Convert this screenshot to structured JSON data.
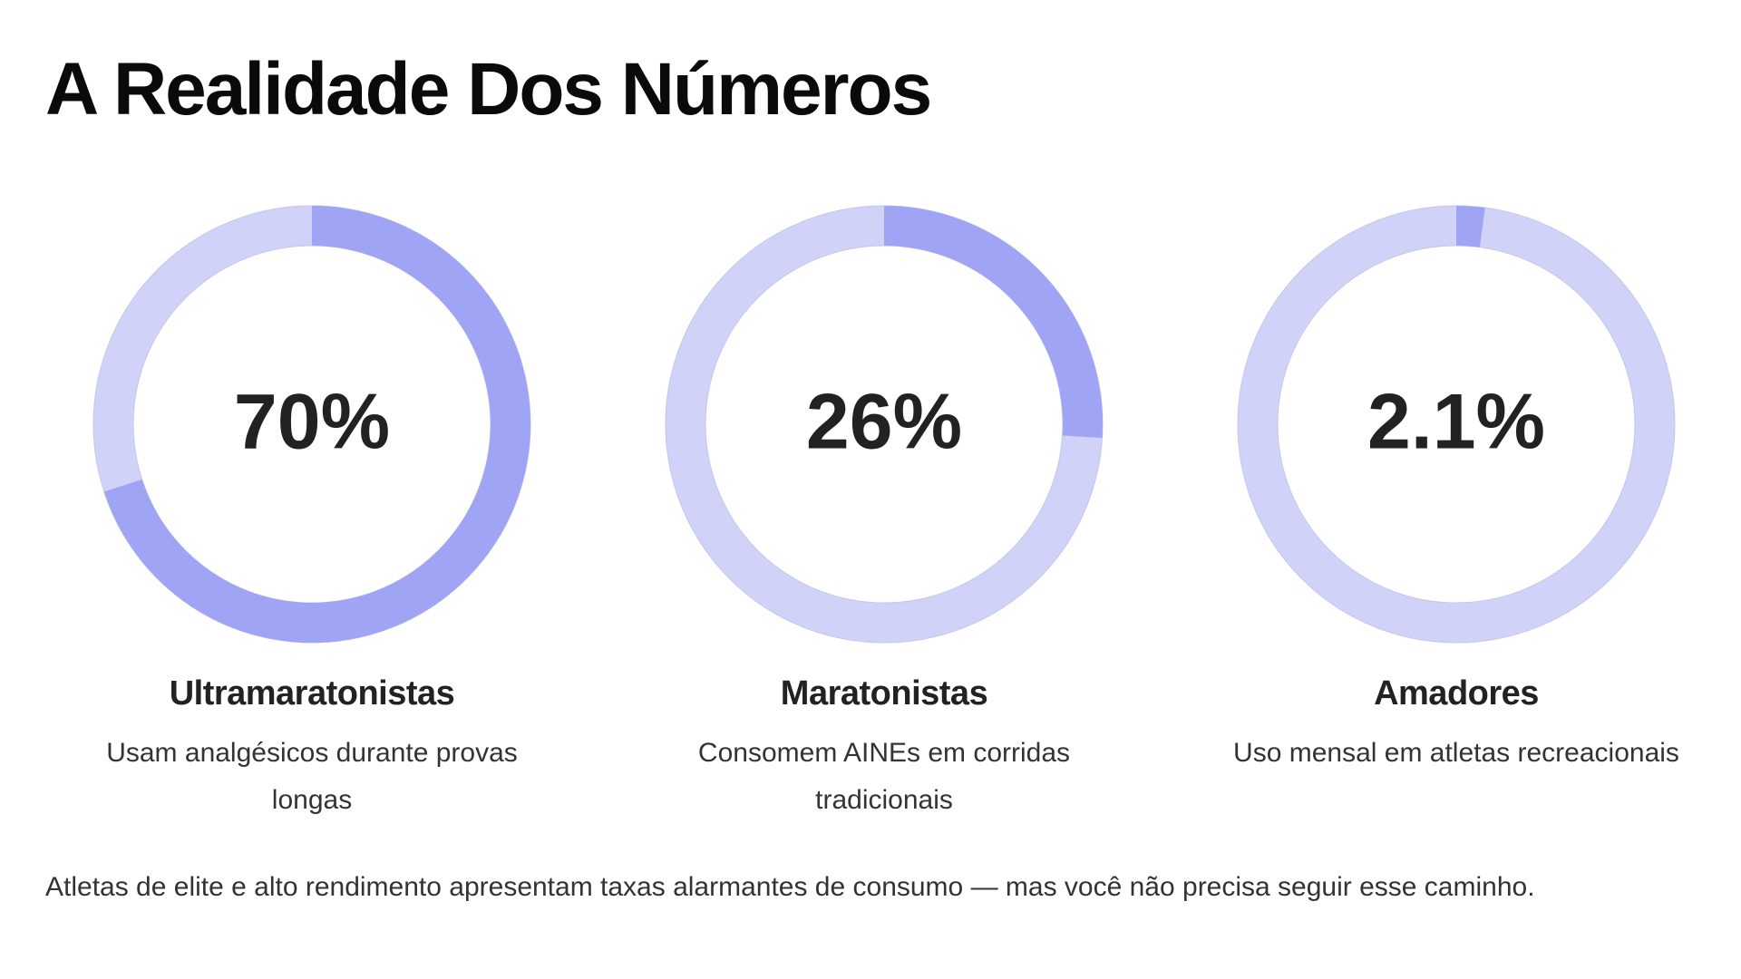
{
  "title": "A Realidade Dos Números",
  "chart_data": [
    {
      "type": "donut",
      "title": "Ultramaratonistas",
      "subtitle": "Usam analgésicos durante provas longas",
      "values": [
        70
      ],
      "value_labels": [
        "70%"
      ],
      "ylim": [
        0,
        100
      ],
      "color": "#a0a4f5",
      "track_color": "#d0d2f7"
    },
    {
      "type": "donut",
      "title": "Maratonistas",
      "subtitle": "Consomem AINEs em corridas tradicionais",
      "values": [
        26
      ],
      "value_labels": [
        "26%"
      ],
      "ylim": [
        0,
        100
      ],
      "color": "#a0a4f5",
      "track_color": "#d0d2f7"
    },
    {
      "type": "donut",
      "title": "Amadores",
      "subtitle": "Uso mensal em atletas recreacionais",
      "values": [
        2.1
      ],
      "value_labels": [
        "2.1%"
      ],
      "ylim": [
        0,
        100
      ],
      "color": "#a0a4f5",
      "track_color": "#d0d2f7"
    }
  ],
  "footer": "Atletas de elite e alto rendimento apresentam taxas alarmantes de consumo — mas você não precisa seguir esse caminho."
}
